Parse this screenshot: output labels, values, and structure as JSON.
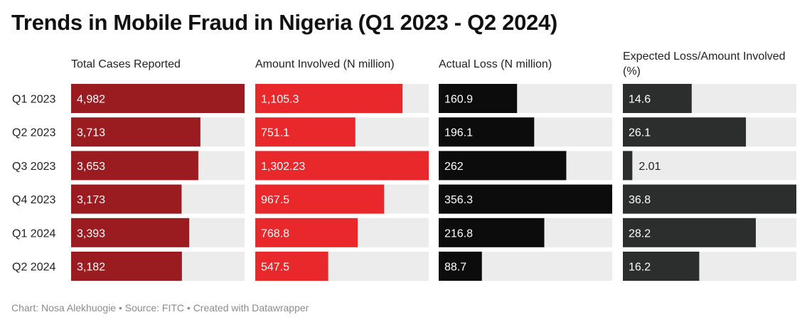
{
  "chart_data": {
    "type": "bar",
    "title": "Trends in Mobile Fraud in Nigeria (Q1 2023 - Q2 2024)",
    "categories": [
      "Q1 2023",
      "Q2 2023",
      "Q3 2023",
      "Q4 2023",
      "Q1 2024",
      "Q2 2024"
    ],
    "series": [
      {
        "name": "Total Cases Reported",
        "values": [
          4982,
          3713,
          3653,
          3173,
          3393,
          3182
        ],
        "labels": [
          "4,982",
          "3,713",
          "3,653",
          "3,173",
          "3,393",
          "3,182"
        ],
        "color": "#9b1c20"
      },
      {
        "name": "Amount Involved (N million)",
        "values": [
          1105.3,
          751.1,
          1302.23,
          967.5,
          768.8,
          547.5
        ],
        "labels": [
          "1,105.3",
          "751.1",
          "1,302.23",
          "967.5",
          "768.8",
          "547.5"
        ],
        "color": "#e8282b"
      },
      {
        "name": "Actual Loss (N million)",
        "values": [
          160.9,
          196.1,
          262,
          356.3,
          216.8,
          88.7
        ],
        "labels": [
          "160.9",
          "196.1",
          "262",
          "356.3",
          "216.8",
          "88.7"
        ],
        "color": "#0c0c0c"
      },
      {
        "name": "Expected Loss/Amount Involved (%)",
        "values": [
          14.6,
          26.1,
          2.01,
          36.8,
          28.2,
          16.2
        ],
        "labels": [
          "14.6",
          "26.1",
          "2.01",
          "36.8",
          "28.2",
          "16.2"
        ],
        "color": "#2b2e2c"
      }
    ],
    "colors": {
      "track": "#ececec",
      "label_inside": "#ffffff",
      "label_outside": "#222222"
    }
  },
  "footer": "Chart: Nosa Alekhuogie • Source: FITC • Created with Datawrapper"
}
